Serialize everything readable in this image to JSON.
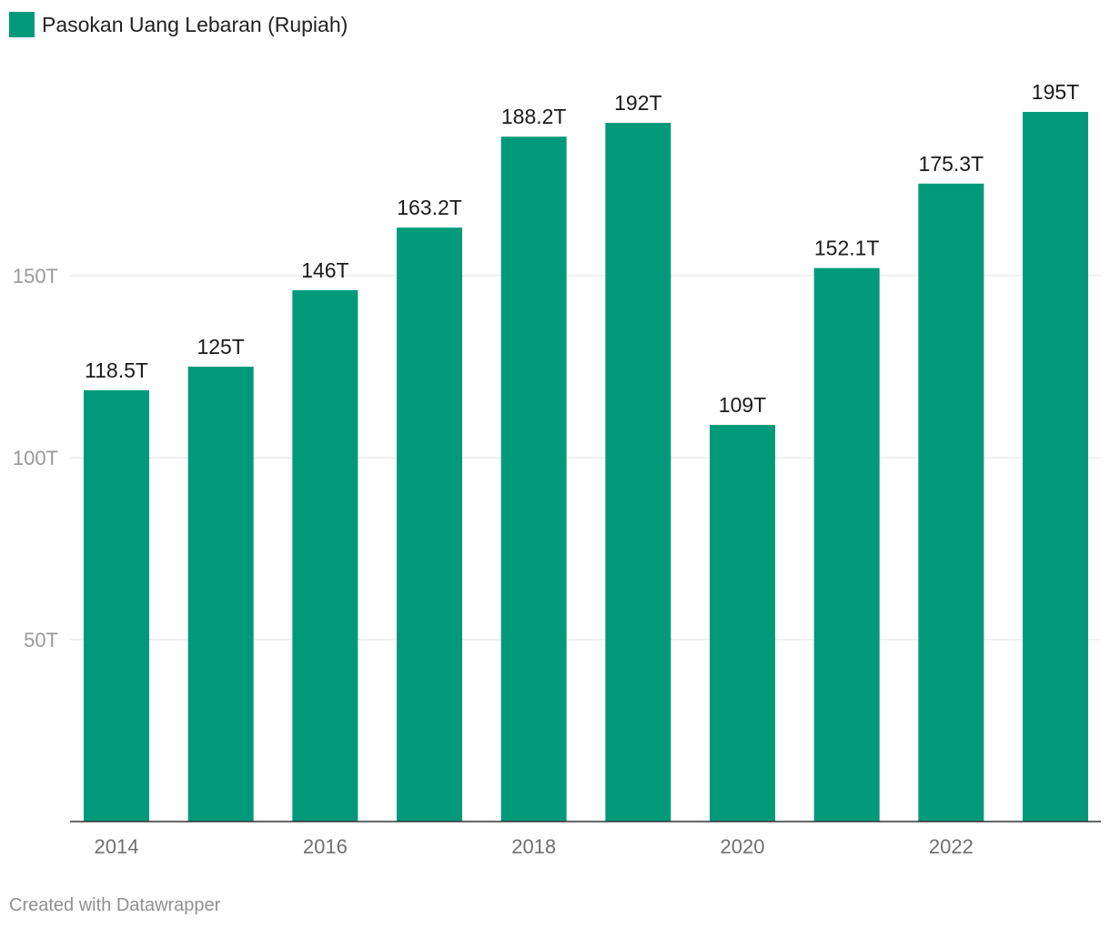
{
  "legend": {
    "label": "Pasokan Uang Lebaran (Rupiah)"
  },
  "footer": {
    "credit": "Created with Datawrapper"
  },
  "colors": {
    "bar": "#009a7b",
    "grid": "#e3e3e3",
    "axis": "#333333"
  },
  "chart_data": {
    "type": "bar",
    "categories": [
      "2014",
      "2015",
      "2016",
      "2017",
      "2018",
      "2019",
      "2020",
      "2021",
      "2022",
      "2023"
    ],
    "series": [
      {
        "name": "Pasokan Uang Lebaran (Rupiah)",
        "values": [
          118.5,
          125,
          146,
          163.2,
          188.2,
          192,
          109,
          152.1,
          175.3,
          195
        ],
        "labels": [
          "118.5T",
          "125T",
          "146T",
          "163.2T",
          "188.2T",
          "192T",
          "109T",
          "152.1T",
          "175.3T",
          "195T"
        ]
      }
    ],
    "x_tick_labels": [
      "2014",
      "",
      "2016",
      "",
      "2018",
      "",
      "2020",
      "",
      "2022",
      ""
    ],
    "y_ticks": [
      50,
      100,
      150
    ],
    "y_tick_labels": [
      "50T",
      "100T",
      "150T"
    ],
    "ylim": [
      0,
      200
    ],
    "grid": true,
    "legend_position": "top-left",
    "title": "",
    "xlabel": "",
    "ylabel": ""
  }
}
